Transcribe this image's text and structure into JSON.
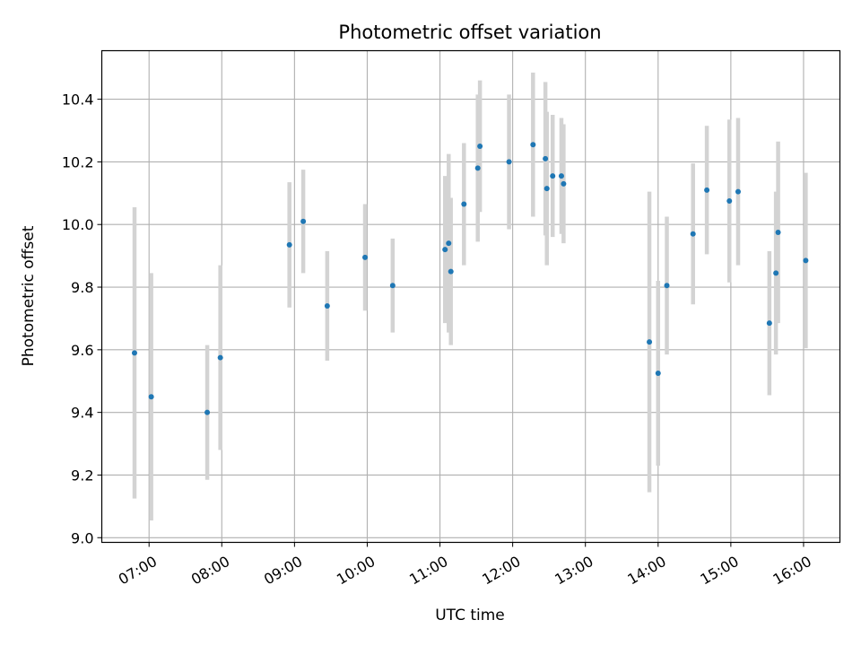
{
  "chart_data": {
    "type": "scatter",
    "title": "Photometric offset variation",
    "xlabel": "UTC time",
    "ylabel": "Photometric offset",
    "x_unit": "hours UTC",
    "xlim": [
      6.35,
      16.5
    ],
    "ylim": [
      8.985,
      10.555
    ],
    "x_ticks": [
      7,
      8,
      9,
      10,
      11,
      12,
      13,
      14,
      15,
      16
    ],
    "x_tick_labels": [
      "07:00",
      "08:00",
      "09:00",
      "10:00",
      "11:00",
      "12:00",
      "13:00",
      "14:00",
      "15:00",
      "16:00"
    ],
    "y_ticks": [
      9.0,
      9.2,
      9.4,
      9.6,
      9.8,
      10.0,
      10.2,
      10.4
    ],
    "y_tick_labels": [
      "9.0",
      "9.2",
      "9.4",
      "9.6",
      "9.8",
      "10.0",
      "10.2",
      "10.4"
    ],
    "grid": true,
    "marker_color": "#1f77b4",
    "errorbar_color": "#d3d3d3",
    "points": [
      {
        "x": 6.8,
        "y": 9.59,
        "yerr": 0.465
      },
      {
        "x": 7.03,
        "y": 9.45,
        "yerr": 0.395
      },
      {
        "x": 7.8,
        "y": 9.4,
        "yerr": 0.215
      },
      {
        "x": 7.98,
        "y": 9.575,
        "yerr": 0.295
      },
      {
        "x": 8.93,
        "y": 9.935,
        "yerr": 0.2
      },
      {
        "x": 9.12,
        "y": 10.01,
        "yerr": 0.165
      },
      {
        "x": 9.45,
        "y": 9.74,
        "yerr": 0.175
      },
      {
        "x": 9.97,
        "y": 9.895,
        "yerr": 0.17
      },
      {
        "x": 10.35,
        "y": 9.805,
        "yerr": 0.15
      },
      {
        "x": 11.07,
        "y": 9.92,
        "yerr": 0.235
      },
      {
        "x": 11.12,
        "y": 9.94,
        "yerr": 0.285
      },
      {
        "x": 11.15,
        "y": 9.85,
        "yerr": 0.235
      },
      {
        "x": 11.33,
        "y": 10.065,
        "yerr": 0.195
      },
      {
        "x": 11.52,
        "y": 10.18,
        "yerr": 0.235
      },
      {
        "x": 11.55,
        "y": 10.25,
        "yerr": 0.21
      },
      {
        "x": 11.95,
        "y": 10.2,
        "yerr": 0.215
      },
      {
        "x": 12.28,
        "y": 10.255,
        "yerr": 0.23
      },
      {
        "x": 12.45,
        "y": 10.21,
        "yerr": 0.245
      },
      {
        "x": 12.47,
        "y": 10.115,
        "yerr": 0.245
      },
      {
        "x": 12.55,
        "y": 10.155,
        "yerr": 0.195
      },
      {
        "x": 12.67,
        "y": 10.155,
        "yerr": 0.185
      },
      {
        "x": 12.7,
        "y": 10.13,
        "yerr": 0.19
      },
      {
        "x": 13.88,
        "y": 9.625,
        "yerr": 0.48
      },
      {
        "x": 14.0,
        "y": 9.525,
        "yerr": 0.295
      },
      {
        "x": 14.12,
        "y": 9.805,
        "yerr": 0.22
      },
      {
        "x": 14.48,
        "y": 9.97,
        "yerr": 0.225
      },
      {
        "x": 14.67,
        "y": 10.11,
        "yerr": 0.205
      },
      {
        "x": 14.98,
        "y": 10.075,
        "yerr": 0.26
      },
      {
        "x": 15.1,
        "y": 10.105,
        "yerr": 0.235
      },
      {
        "x": 15.53,
        "y": 9.685,
        "yerr": 0.23
      },
      {
        "x": 15.62,
        "y": 9.845,
        "yerr": 0.26
      },
      {
        "x": 15.65,
        "y": 9.975,
        "yerr": 0.29
      },
      {
        "x": 16.03,
        "y": 9.885,
        "yerr": 0.28
      }
    ]
  }
}
